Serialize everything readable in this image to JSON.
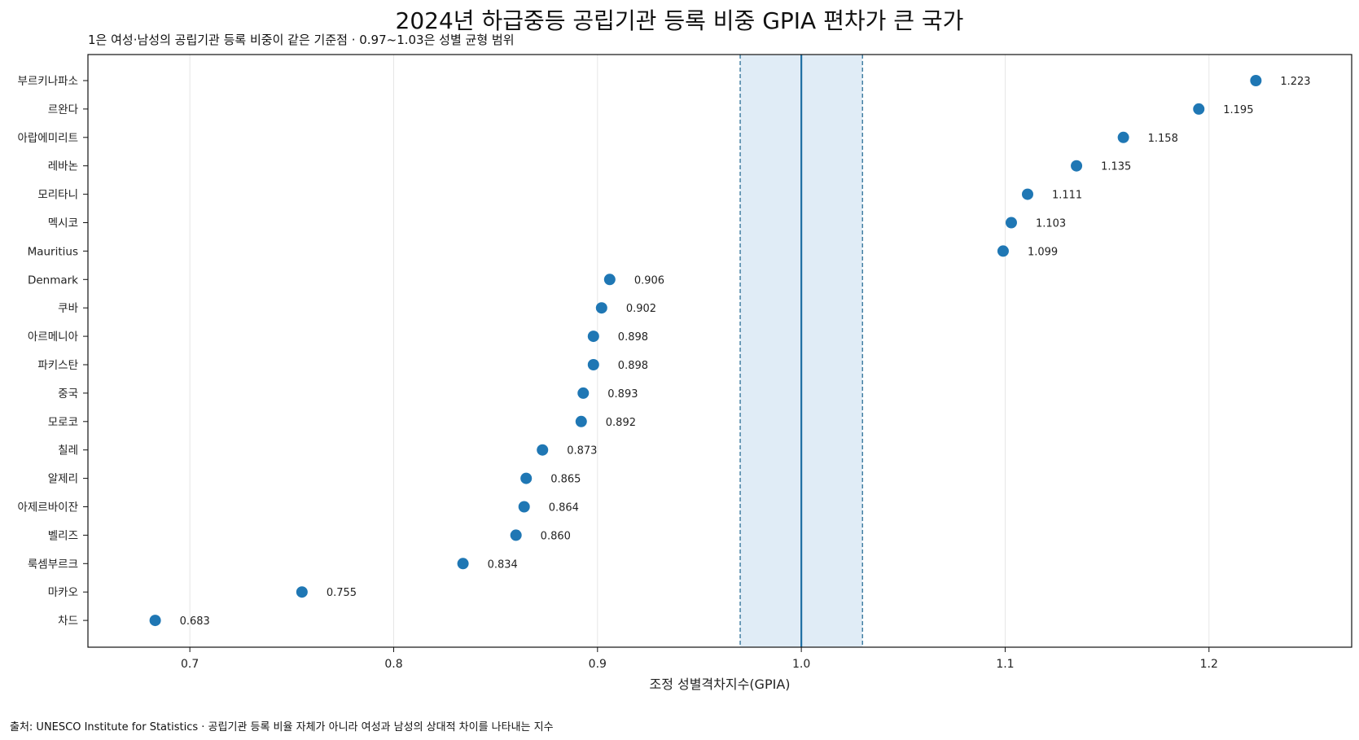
{
  "chart_data": {
    "type": "scatter",
    "title": "2024년 하급중등 공립기관 등록 비중 GPIA 편차가 큰 국가",
    "subtitle": "1은 여성·남성의 공립기관 등록 비중이 같은 기준점 · 0.97~1.03은 성별 균형 범위",
    "xlabel": "조정 성별격차지수(GPIA)",
    "ylabel": "",
    "xlim": [
      0.65,
      1.27
    ],
    "xticks": [
      0.7,
      0.8,
      0.9,
      1.0,
      1.1,
      1.2
    ],
    "xtick_labels": [
      "0.7",
      "0.8",
      "0.9",
      "1.0",
      "1.1",
      "1.2"
    ],
    "reference_line": 1.0,
    "parity_band": [
      0.97,
      1.03
    ],
    "grid": "vertical",
    "points": [
      {
        "country": "부르키나파소",
        "value": 1.223,
        "label": "1.223"
      },
      {
        "country": "르완다",
        "value": 1.195,
        "label": "1.195"
      },
      {
        "country": "아랍에미리트",
        "value": 1.158,
        "label": "1.158"
      },
      {
        "country": "레바논",
        "value": 1.135,
        "label": "1.135"
      },
      {
        "country": "모리타니",
        "value": 1.111,
        "label": "1.111"
      },
      {
        "country": "멕시코",
        "value": 1.103,
        "label": "1.103"
      },
      {
        "country": "Mauritius",
        "value": 1.099,
        "label": "1.099"
      },
      {
        "country": "Denmark",
        "value": 0.906,
        "label": "0.906"
      },
      {
        "country": "쿠바",
        "value": 0.902,
        "label": "0.902"
      },
      {
        "country": "아르메니아",
        "value": 0.898,
        "label": "0.898"
      },
      {
        "country": "파키스탄",
        "value": 0.898,
        "label": "0.898"
      },
      {
        "country": "중국",
        "value": 0.893,
        "label": "0.893"
      },
      {
        "country": "모로코",
        "value": 0.892,
        "label": "0.892"
      },
      {
        "country": "칠레",
        "value": 0.873,
        "label": "0.873"
      },
      {
        "country": "알제리",
        "value": 0.865,
        "label": "0.865"
      },
      {
        "country": "아제르바이잔",
        "value": 0.864,
        "label": "0.864"
      },
      {
        "country": "벨리즈",
        "value": 0.86,
        "label": "0.860"
      },
      {
        "country": "룩셈부르크",
        "value": 0.834,
        "label": "0.834"
      },
      {
        "country": "마카오",
        "value": 0.755,
        "label": "0.755"
      },
      {
        "country": "차드",
        "value": 0.683,
        "label": "0.683"
      }
    ],
    "colors": {
      "point": "#1f77b4",
      "reference_line": "#1f6fa3",
      "band_fill": "#e0ecf6",
      "band_edge": "#2a6e96",
      "grid": "#e6e6e6"
    }
  },
  "footer": {
    "source": "출처: UNESCO Institute for Statistics · 공립기관 등록 비율 자체가 아니라 여성과 남성의 상대적 차이를 나타내는 지수"
  }
}
